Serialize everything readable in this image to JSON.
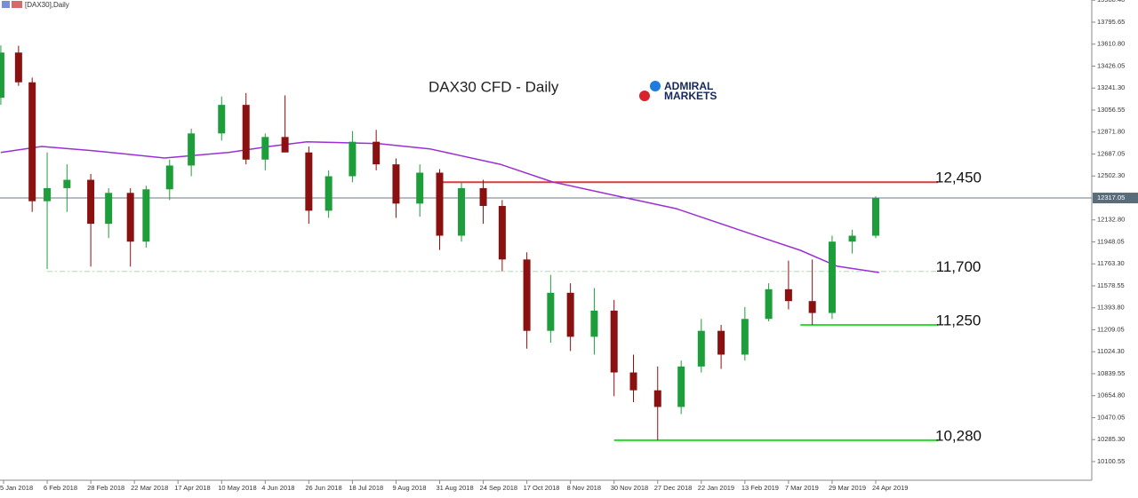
{
  "header": {
    "symbol": "[DAX30],Daily"
  },
  "logo": {
    "line1": "ADMIRAL",
    "line2": "MARKETS"
  },
  "chart_data": {
    "type": "candlestick",
    "title": "DAX30 CFD - Daily",
    "up_color": "#1e9e3a",
    "down_color": "#8b1010",
    "ylim": [
      9951,
      13982
    ],
    "yticks": [
      {
        "value": 13980.4,
        "label": "13980.40"
      },
      13795.65,
      {
        "value": 13610.8,
        "label": "13610.80"
      },
      13426.05,
      {
        "value": 13241.3,
        "label": "13241.30"
      },
      13056.55,
      {
        "value": 12871.8,
        "label": "12871.80"
      },
      12687.05,
      {
        "value": 12502.3,
        "label": "12502.30"
      },
      {
        "value": 12132.8,
        "label": "12132.80"
      },
      11948.05,
      {
        "value": 11763.3,
        "label": "11763.30"
      },
      11578.55,
      {
        "value": 11393.8,
        "label": "11393.80"
      },
      11209.05,
      {
        "value": 11024.3,
        "label": "11024.30"
      },
      10839.55,
      {
        "value": 10654.8,
        "label": "10654.80"
      },
      10470.05,
      {
        "value": 10285.3,
        "label": "10285.30"
      },
      10100.55
    ],
    "xticks": [
      {
        "value": "2018-01-05",
        "label": "5 Jan 2018"
      },
      {
        "value": "2018-02-06",
        "label": "6 Feb 2018"
      },
      {
        "value": "2018-02-28",
        "label": "28 Feb 2018"
      },
      {
        "value": "2018-03-22",
        "label": "22 Mar 2018"
      },
      {
        "value": "2018-04-17",
        "label": "17 Apr 2018"
      },
      {
        "value": "2018-05-10",
        "label": "10 May 2018"
      },
      {
        "value": "2018-06-04",
        "label": "4 Jun 2018"
      },
      {
        "value": "2018-06-26",
        "label": "26 Jun 2018"
      },
      {
        "value": "2018-07-18",
        "label": "18 Jul 2018"
      },
      {
        "value": "2018-08-09",
        "label": "9 Aug 2018"
      },
      {
        "value": "2018-08-31",
        "label": "31 Aug 2018"
      },
      {
        "value": "2018-09-24",
        "label": "24 Sep 2018"
      },
      {
        "value": "2018-10-17",
        "label": "17 Oct 2018"
      },
      {
        "value": "2018-11-08",
        "label": "8 Nov 2018"
      },
      {
        "value": "2018-11-30",
        "label": "30 Nov 2018"
      },
      {
        "value": "2018-12-27",
        "label": "27 Dec 2018"
      },
      {
        "value": "2019-01-22",
        "label": "22 Jan 2019"
      },
      {
        "value": "2019-02-13",
        "label": "13 Feb 2019"
      },
      {
        "value": "2019-03-07",
        "label": "7 Mar 2019"
      },
      {
        "value": "2019-03-29",
        "label": "29 Mar 2019"
      },
      {
        "value": "2019-04-24",
        "label": "24 Apr 2019"
      }
    ],
    "current_price": 12317.05,
    "candles": {
      "x": [
        "2018-01-03",
        "2018-01-16",
        "2018-01-26",
        "2018-02-06",
        "2018-02-16",
        "2018-02-28",
        "2018-03-09",
        "2018-03-20",
        "2018-03-29",
        "2018-04-12",
        "2018-04-24",
        "2018-05-10",
        "2018-05-24",
        "2018-06-04",
        "2018-06-14",
        "2018-06-26",
        "2018-07-06",
        "2018-07-18",
        "2018-07-30",
        "2018-08-09",
        "2018-08-21",
        "2018-08-31",
        "2018-09-12",
        "2018-09-24",
        "2018-10-04",
        "2018-10-17",
        "2018-10-29",
        "2018-11-08",
        "2018-11-20",
        "2018-11-30",
        "2018-12-12",
        "2018-12-27",
        "2019-01-10",
        "2019-01-22",
        "2019-02-01",
        "2019-02-13",
        "2019-02-25",
        "2019-03-07",
        "2019-03-19",
        "2019-03-29",
        "2019-04-10",
        "2019-04-24"
      ],
      "open": [
        13160,
        13540,
        13290,
        12290,
        12400,
        12470,
        12100,
        12360,
        11950,
        12390,
        12590,
        12860,
        13100,
        12640,
        12830,
        12700,
        12210,
        12500,
        12790,
        12600,
        12270,
        12530,
        12000,
        12400,
        12250,
        11800,
        11200,
        11520,
        11150,
        11370,
        10850,
        10700,
        10560,
        10900,
        11200,
        11000,
        11300,
        11550,
        11450,
        11350,
        11950,
        12000
      ],
      "high": [
        13600,
        13597,
        13330,
        12700,
        12600,
        12520,
        12400,
        12400,
        12420,
        12640,
        12900,
        13170,
        13200,
        12860,
        13180,
        12750,
        12550,
        12880,
        12890,
        12650,
        12600,
        12560,
        12450,
        12470,
        12300,
        11860,
        11670,
        11600,
        11560,
        11460,
        11000,
        10900,
        10950,
        11300,
        11250,
        11400,
        11600,
        11790,
        11800,
        12000,
        12050,
        12330
      ],
      "low": [
        13100,
        13260,
        12200,
        11720,
        12200,
        11740,
        11980,
        11740,
        11900,
        12300,
        12500,
        12800,
        12600,
        12550,
        12750,
        12100,
        12150,
        12450,
        12550,
        12150,
        12160,
        11880,
        11950,
        12100,
        11700,
        11050,
        11100,
        11030,
        11000,
        10650,
        10600,
        10280,
        10500,
        10850,
        10880,
        10950,
        11280,
        11380,
        11250,
        11300,
        11850,
        11980
      ],
      "close": [
        13540,
        13290,
        12290,
        12400,
        12470,
        12100,
        12360,
        11950,
        12390,
        12590,
        12860,
        13100,
        12640,
        12830,
        12700,
        12210,
        12500,
        12790,
        12600,
        12270,
        12530,
        12000,
        12400,
        12250,
        11800,
        11200,
        11520,
        11150,
        11370,
        10850,
        10700,
        10560,
        10900,
        11200,
        11000,
        11300,
        11550,
        11450,
        11350,
        11950,
        12000,
        12317
      ]
    },
    "ma": {
      "color": "#9a2fd6",
      "x": [
        "2018-01-03",
        "2018-02-02",
        "2018-03-01",
        "2018-04-09",
        "2018-05-14",
        "2018-06-06",
        "2018-06-25",
        "2018-07-31",
        "2018-08-26",
        "2018-10-03",
        "2018-10-30",
        "2018-12-05",
        "2019-01-07",
        "2019-02-14",
        "2019-03-13",
        "2019-04-01",
        "2019-04-26"
      ],
      "values": [
        12700,
        12750,
        12715,
        12653,
        12700,
        12750,
        12790,
        12775,
        12730,
        12600,
        12452,
        12325,
        12228,
        12027,
        11877,
        11743,
        11690
      ]
    },
    "levels": [
      {
        "label": "12,450",
        "value": 12450,
        "color": "#e03a3a",
        "from": "2018-08-31",
        "dash": false
      },
      {
        "label": "11,700",
        "value": 11700,
        "color": "#9be89b",
        "from": "2018-02-06",
        "dash": true
      },
      {
        "label": "11,250",
        "value": 11250,
        "color": "#33dd33",
        "from": "2019-03-13",
        "dash": false
      },
      {
        "label": "10,280",
        "value": 10280,
        "color": "#22dd22",
        "from": "2018-11-30",
        "dash": false
      }
    ]
  }
}
